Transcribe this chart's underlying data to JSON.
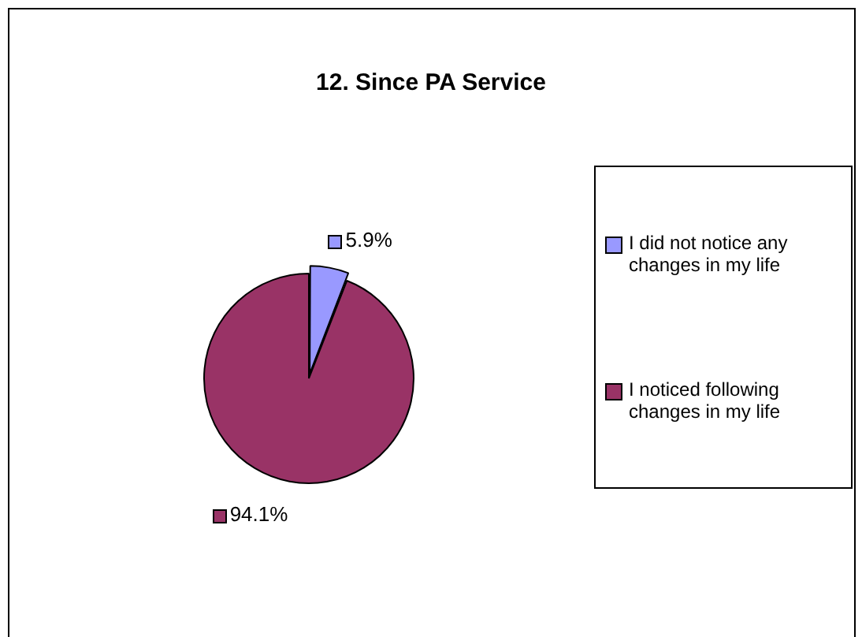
{
  "chart_data": {
    "type": "pie",
    "title": "12. Since PA Service",
    "categories": [
      "I did not notice any changes in my life",
      "I noticed following changes in my life"
    ],
    "values": [
      5.9,
      94.1
    ],
    "colors": [
      "#9999ff",
      "#993366"
    ],
    "value_labels": [
      "5.9%",
      "94.1%"
    ],
    "legend": "right"
  }
}
